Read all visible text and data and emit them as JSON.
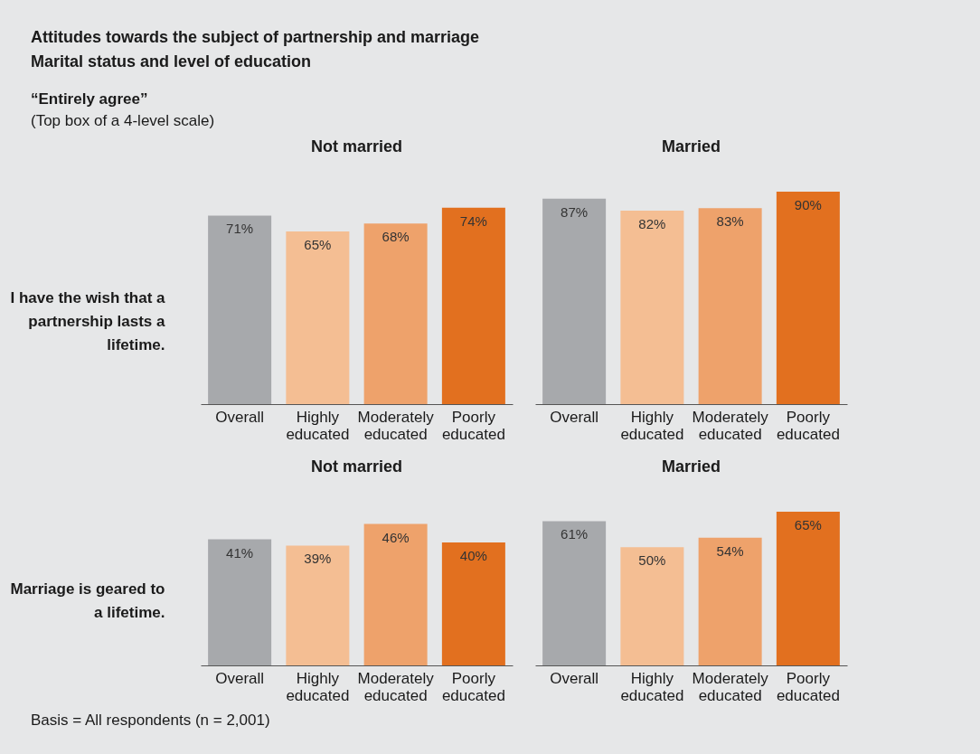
{
  "chart_data": [
    {
      "type": "bar",
      "title": "Not married",
      "ylabel": "I have the wish that a partnership lasts a lifetime.",
      "categories": [
        "Overall",
        "Highly educated",
        "Moderately educated",
        "Poorly educated"
      ],
      "values": [
        71,
        65,
        68,
        74
      ],
      "value_labels": [
        "71%",
        "65%",
        "68%",
        "74%"
      ],
      "colors": [
        "#a7a9ac",
        "#f4be93",
        "#eea26b",
        "#e2701f"
      ],
      "annotations": [
        "Attitudes towards the subject of partnership and marriage",
        "Marital status and level of education",
        "“Entirely agree”",
        "(Top box of a 4-level scale)"
      ]
    },
    {
      "type": "bar",
      "title": "Married",
      "categories": [
        "Overall",
        "Highly educated",
        "Moderately educated",
        "Poorly educated"
      ],
      "values": [
        87,
        82,
        83,
        90
      ],
      "value_labels": [
        "87%",
        "82%",
        "83%",
        "90%"
      ],
      "colors": [
        "#a7a9ac",
        "#f4be93",
        "#eea26b",
        "#e2701f"
      ]
    },
    {
      "type": "bar",
      "title": "Not married",
      "ylabel": "Marriage is geared to a lifetime.",
      "categories": [
        "Overall",
        "Highly educated",
        "Moderately educated",
        "Poorly educated"
      ],
      "values": [
        41,
        39,
        46,
        40
      ],
      "value_labels": [
        "41%",
        "39%",
        "46%",
        "40%"
      ],
      "colors": [
        "#a7a9ac",
        "#f4be93",
        "#eea26b",
        "#e2701f"
      ]
    },
    {
      "type": "bar",
      "title": "Married",
      "categories": [
        "Overall",
        "Highly educated",
        "Moderately educated",
        "Poorly educated"
      ],
      "values": [
        61,
        50,
        54,
        65
      ],
      "value_labels": [
        "61%",
        "50%",
        "54%",
        "65%"
      ],
      "colors": [
        "#a7a9ac",
        "#f4be93",
        "#eea26b",
        "#e2701f"
      ],
      "annotations": [
        "Basis = All respondents (n = 2,001)"
      ]
    }
  ]
}
